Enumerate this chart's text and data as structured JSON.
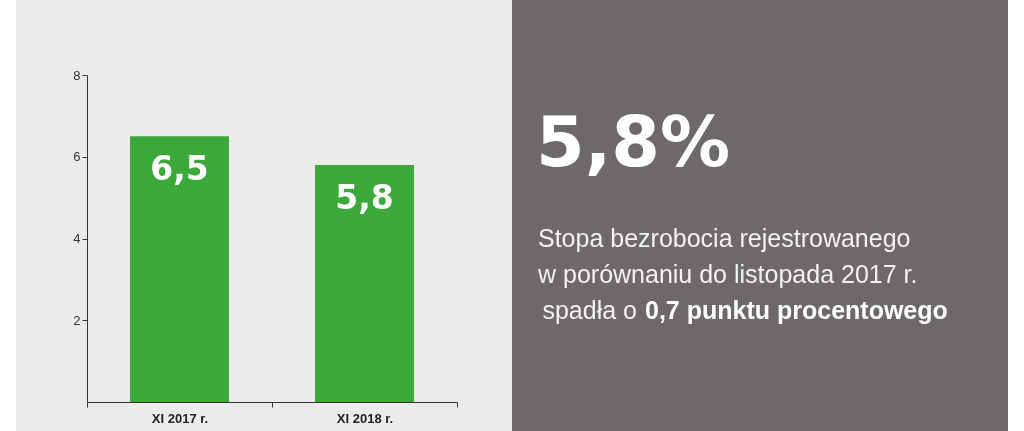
{
  "chart_data": [
    {
      "type": "bar",
      "categories": [
        "XI 2017 r.",
        "XI 2018 r."
      ],
      "values": [
        6.5,
        5.8
      ],
      "value_labels": [
        "6,5",
        "5,8"
      ],
      "color": "#3ca83a",
      "ylim": [
        0,
        8
      ],
      "yticks": [
        2,
        4,
        6,
        8
      ]
    },
    {
      "type": "other",
      "title": "5,8%",
      "annotations": [
        "Stopa bezrobocia rejestrowanego",
        "w porównaniu do listopada 2017 r.",
        "spadła o",
        "0,7 punktu procentowego"
      ]
    }
  ]
}
